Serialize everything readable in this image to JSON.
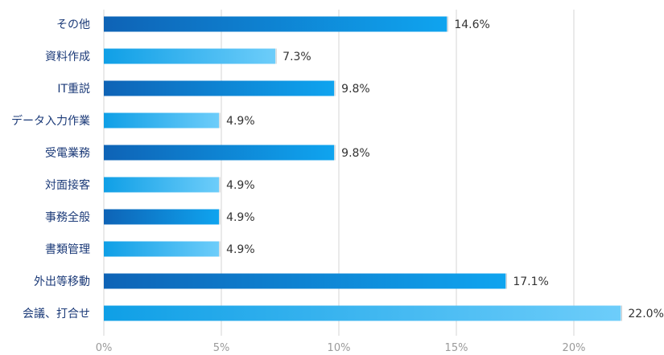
{
  "chart_data": {
    "type": "bar",
    "orientation": "horizontal",
    "categories": [
      "その他",
      "資料作成",
      "IT重説",
      "データ入力作業",
      "受電業務",
      "対面接客",
      "事務全般",
      "書類管理",
      "外出等移動",
      "会議、打合せ"
    ],
    "values": [
      14.6,
      7.3,
      9.8,
      4.9,
      9.8,
      4.9,
      4.9,
      4.9,
      17.1,
      22.0
    ],
    "value_labels": [
      "14.6%",
      "7.3%",
      "9.8%",
      "4.9%",
      "9.8%",
      "4.9%",
      "4.9%",
      "4.9%",
      "17.1%",
      "22.0%"
    ],
    "xlim": [
      0,
      24
    ],
    "x_ticks": [
      0,
      5,
      10,
      15,
      20
    ],
    "x_tick_labels": [
      "0%",
      "5%",
      "10%",
      "15%",
      "20%"
    ],
    "grid": true,
    "legend": "none",
    "title": "",
    "xlabel": "",
    "ylabel": "",
    "colors": {
      "dark_start": "#0e63b6",
      "dark_end": "#0fa4ef",
      "light_start": "#0f9fe6",
      "light_end": "#6dcdfa",
      "category_text": "#1b3a78",
      "value_text": "#333333",
      "tick_text": "#9a9a9a",
      "grid_line": "#d6d6d6"
    }
  }
}
